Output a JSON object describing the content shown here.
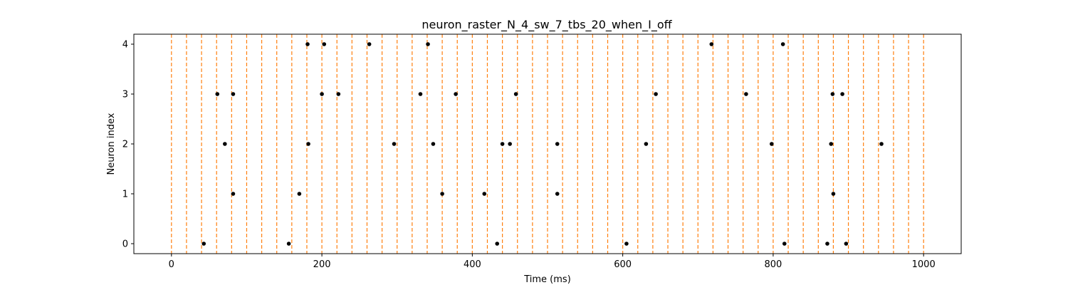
{
  "chart_data": {
    "type": "scatter",
    "title": "neuron_raster_N_4_sw_7_tbs_20_when_I_off",
    "xlabel": "Time (ms)",
    "ylabel": "Neuron index",
    "xlim": [
      -50,
      1050
    ],
    "ylim": [
      -0.2,
      4.2
    ],
    "xticks": [
      0,
      200,
      400,
      600,
      800,
      1000
    ],
    "yticks": [
      0,
      1,
      2,
      3,
      4
    ],
    "grid": false,
    "bin_lines": {
      "color": "#ff7f0e",
      "style": "dashed",
      "x": [
        0,
        20,
        40,
        60,
        80,
        100,
        120,
        140,
        160,
        180,
        200,
        220,
        240,
        260,
        280,
        300,
        320,
        340,
        360,
        380,
        400,
        420,
        440,
        460,
        480,
        500,
        520,
        540,
        560,
        580,
        600,
        620,
        640,
        660,
        680,
        700,
        720,
        740,
        760,
        780,
        800,
        820,
        840,
        860,
        880,
        900,
        920,
        940,
        960,
        980,
        1000
      ]
    },
    "series": [
      {
        "marker_color": "#000000",
        "points": [
          [
            43,
            0
          ],
          [
            156,
            0
          ],
          [
            433,
            0
          ],
          [
            605,
            0
          ],
          [
            815,
            0
          ],
          [
            872,
            0
          ],
          [
            897,
            0
          ],
          [
            82,
            1
          ],
          [
            170,
            1
          ],
          [
            360,
            1
          ],
          [
            416,
            1
          ],
          [
            513,
            1
          ],
          [
            880,
            1
          ],
          [
            71,
            2
          ],
          [
            182,
            2
          ],
          [
            296,
            2
          ],
          [
            348,
            2
          ],
          [
            440,
            2
          ],
          [
            450,
            2
          ],
          [
            513,
            2
          ],
          [
            631,
            2
          ],
          [
            798,
            2
          ],
          [
            877,
            2
          ],
          [
            944,
            2
          ],
          [
            61,
            3
          ],
          [
            82,
            3
          ],
          [
            200,
            3
          ],
          [
            222,
            3
          ],
          [
            331,
            3
          ],
          [
            378,
            3
          ],
          [
            458,
            3
          ],
          [
            644,
            3
          ],
          [
            764,
            3
          ],
          [
            879,
            3
          ],
          [
            892,
            3
          ],
          [
            181,
            4
          ],
          [
            203,
            4
          ],
          [
            263,
            4
          ],
          [
            341,
            4
          ],
          [
            718,
            4
          ],
          [
            813,
            4
          ]
        ]
      }
    ]
  }
}
